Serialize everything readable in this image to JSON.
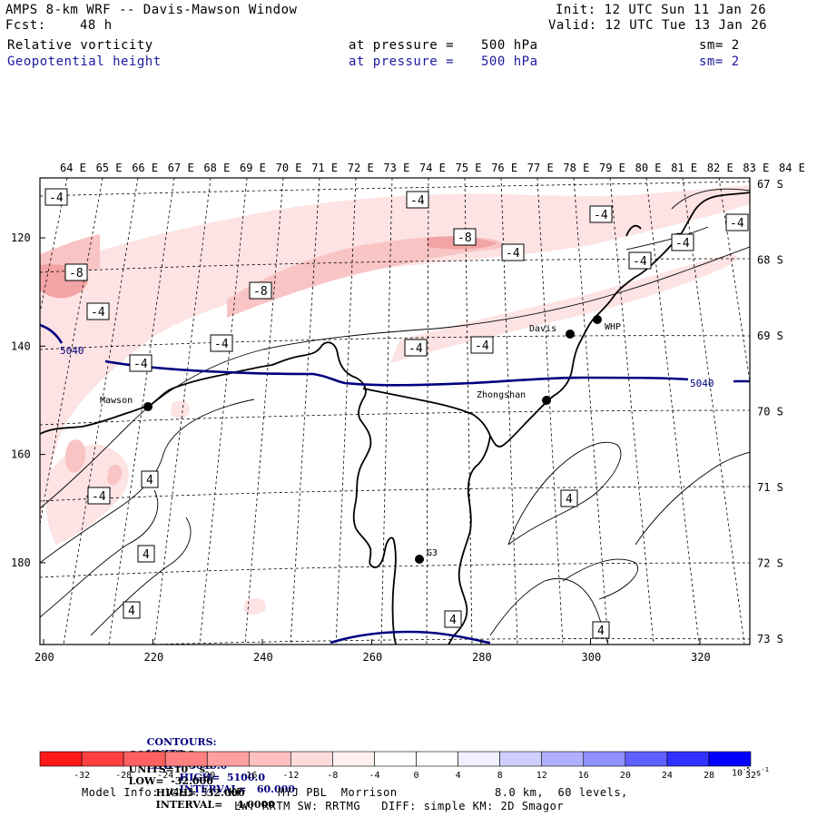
{
  "header": {
    "title": "AMPS 8-km WRF -- Davis-Mawson Window",
    "init": "Init: 12 UTC Sun 11 Jan 26",
    "fcst_label": "Fcst:",
    "fcst_value": "48 h",
    "valid": "Valid: 12 UTC Tue 13 Jan 26",
    "field1": {
      "name": "Relative vorticity",
      "level_text": "at pressure =",
      "level": "500 hPa",
      "sm": "sm= 2"
    },
    "field2": {
      "name": "Geopotential height",
      "level_text": "at pressure =",
      "level": "500 hPa",
      "sm": "sm= 2"
    }
  },
  "map": {
    "top_longitudes": [
      "64 E",
      "65 E",
      "66 E",
      "67 E",
      "68 E",
      "69 E",
      "70 E",
      "71 E",
      "72 E",
      "73 E",
      "74 E",
      "75 E",
      "76 E",
      "77 E",
      "78 E",
      "79 E",
      "80 E",
      "81 E",
      "82 E",
      "83 E",
      "84 E"
    ],
    "right_latitudes": [
      "67 S",
      "68 S",
      "69 S",
      "70 S",
      "71 S",
      "72 S",
      "73 S"
    ],
    "x_ticks": [
      "200",
      "220",
      "240",
      "260",
      "280",
      "300",
      "320"
    ],
    "y_ticks": [
      "120",
      "140",
      "160",
      "180"
    ],
    "stations": [
      {
        "name": "Mawson"
      },
      {
        "name": "Davis"
      },
      {
        "name": "WHP"
      },
      {
        "name": "Zhongshan"
      },
      {
        "name": "G3"
      }
    ],
    "height_labels": [
      "5040",
      "5040"
    ],
    "contour_labels": [
      "-4",
      "-4",
      "-8",
      "-4",
      "-4",
      "-8",
      "-4",
      "-8",
      "-4",
      "-4",
      "-4",
      "-4",
      "-4",
      "-4",
      "-4",
      "4",
      "-4",
      "4",
      "4",
      "4",
      "4",
      "4",
      "4",
      "-4",
      "4"
    ]
  },
  "legend": {
    "line1_contours": "CONTOURS:",
    "line1_units": "UNITS=m",
    "line1_low": "LOW=  5040.0",
    "line1_high": "HIGH=  5100.0",
    "line1_interval": "INTERVAL=   60.000",
    "line2_contours": "CONTOURS:",
    "line2_units": "UNITS=10",
    "line2_units_exp": "-5",
    "line2_units_tail": " s",
    "line2_units_tail_exp": "-1",
    "line2_low": "LOW=  -32.000",
    "line2_high": "HIGH=   32.000",
    "line2_interval": "INTERVAL=    4.0000"
  },
  "colorbar": {
    "colors": [
      "#ff1a1a",
      "#ff4040",
      "#ff6060",
      "#ff8080",
      "#ffa0a0",
      "#ffc0c0",
      "#ffdcdc",
      "#fff0f0",
      "#ffffff",
      "#ffffff",
      "#f0f0ff",
      "#d0d0ff",
      "#b0b0ff",
      "#9090ff",
      "#6060ff",
      "#3030ff",
      "#0000ff"
    ],
    "labels": [
      "-32",
      "-28",
      "-24",
      "-20",
      "-16",
      "-12",
      "-8",
      "-4",
      "0",
      "4",
      "8",
      "12",
      "16",
      "20",
      "24",
      "28",
      "32"
    ],
    "unit": "10",
    "unit_exp": "-5",
    "unit_tail": " s",
    "unit_tail_exp": "-1"
  },
  "footer": {
    "line1_a": "Model Info: V4.3.3   KF     MYJ PBL  Morrison",
    "line1_b": "8.0 km,  60 levels,",
    "line2": "LW: RRTM SW: RRTMG   DIFF: simple KM: 2D Smagor"
  },
  "colors": {
    "geopotential": "#000080",
    "header_blue": "#1a1aa0",
    "vort_light": "#fde3e3",
    "vort_mid": "#f9c4c4",
    "vort_dark": "#f2a3a3"
  }
}
